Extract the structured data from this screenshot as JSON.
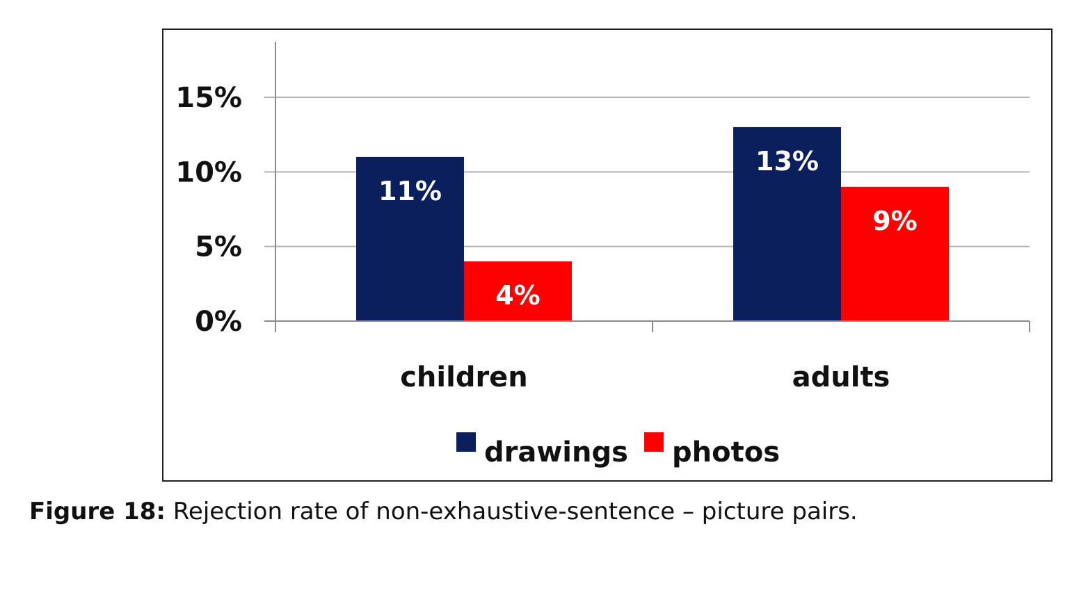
{
  "colors": {
    "drawings": "#0a1f5c",
    "photos": "#ff0000",
    "grid": "#b3b3b3",
    "axis": "#8c8c8c",
    "frame": "#222222"
  },
  "caption": {
    "label": "Figure 18:",
    "text": " Rejection rate of non-exhaustive-sentence – picture pairs."
  },
  "chart_data": {
    "type": "bar",
    "categories": [
      "children",
      "adults"
    ],
    "series": [
      {
        "name": "drawings",
        "values": [
          11,
          13
        ],
        "labels": [
          "11%",
          "13%"
        ]
      },
      {
        "name": "photos",
        "values": [
          4,
          9
        ],
        "labels": [
          "4%",
          "9%"
        ]
      }
    ],
    "title": "",
    "xlabel": "",
    "ylabel": "",
    "ylim": [
      0,
      15
    ],
    "yticks": [
      0,
      5,
      10,
      15
    ],
    "ytick_labels": [
      "0%",
      "5%",
      "10%",
      "15%"
    ],
    "grid": true,
    "legend": "bottom"
  }
}
